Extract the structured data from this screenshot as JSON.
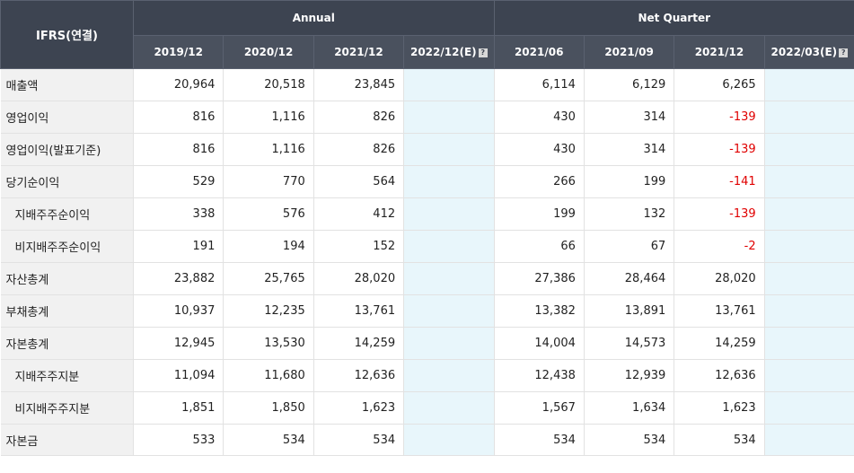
{
  "header": {
    "label": "IFRS(연결)",
    "annual": "Annual",
    "quarter": "Net Quarter",
    "periods": [
      "2019/12",
      "2020/12",
      "2021/12",
      "2022/12(E)",
      "2021/06",
      "2021/09",
      "2021/12",
      "2022/03(E)"
    ],
    "help_icon": "?"
  },
  "rows": [
    {
      "label": "매출액",
      "values": [
        "20,964",
        "20,518",
        "23,845",
        "",
        "6,114",
        "6,129",
        "6,265",
        ""
      ]
    },
    {
      "label": "영업이익",
      "values": [
        "816",
        "1,116",
        "826",
        "",
        "430",
        "314",
        "-139",
        ""
      ]
    },
    {
      "label": "영업이익(발표기준)",
      "values": [
        "816",
        "1,116",
        "826",
        "",
        "430",
        "314",
        "-139",
        ""
      ]
    },
    {
      "label": "당기순이익",
      "values": [
        "529",
        "770",
        "564",
        "",
        "266",
        "199",
        "-141",
        ""
      ]
    },
    {
      "label": "지배주주순이익",
      "values": [
        "338",
        "576",
        "412",
        "",
        "199",
        "132",
        "-139",
        ""
      ]
    },
    {
      "label": "비지배주주순이익",
      "values": [
        "191",
        "194",
        "152",
        "",
        "66",
        "67",
        "-2",
        ""
      ]
    },
    {
      "label": "자산총계",
      "values": [
        "23,882",
        "25,765",
        "28,020",
        "",
        "27,386",
        "28,464",
        "28,020",
        ""
      ]
    },
    {
      "label": "부채총계",
      "values": [
        "10,937",
        "12,235",
        "13,761",
        "",
        "13,382",
        "13,891",
        "13,761",
        ""
      ]
    },
    {
      "label": "자본총계",
      "values": [
        "12,945",
        "13,530",
        "14,259",
        "",
        "14,004",
        "14,573",
        "14,259",
        ""
      ]
    },
    {
      "label": "지배주주지분",
      "values": [
        "11,094",
        "11,680",
        "12,636",
        "",
        "12,438",
        "12,939",
        "12,636",
        ""
      ]
    },
    {
      "label": "비지배주주지분",
      "values": [
        "1,851",
        "1,850",
        "1,623",
        "",
        "1,567",
        "1,634",
        "1,623",
        ""
      ]
    },
    {
      "label": "자본금",
      "values": [
        "533",
        "534",
        "534",
        "",
        "534",
        "534",
        "534",
        ""
      ]
    }
  ]
}
